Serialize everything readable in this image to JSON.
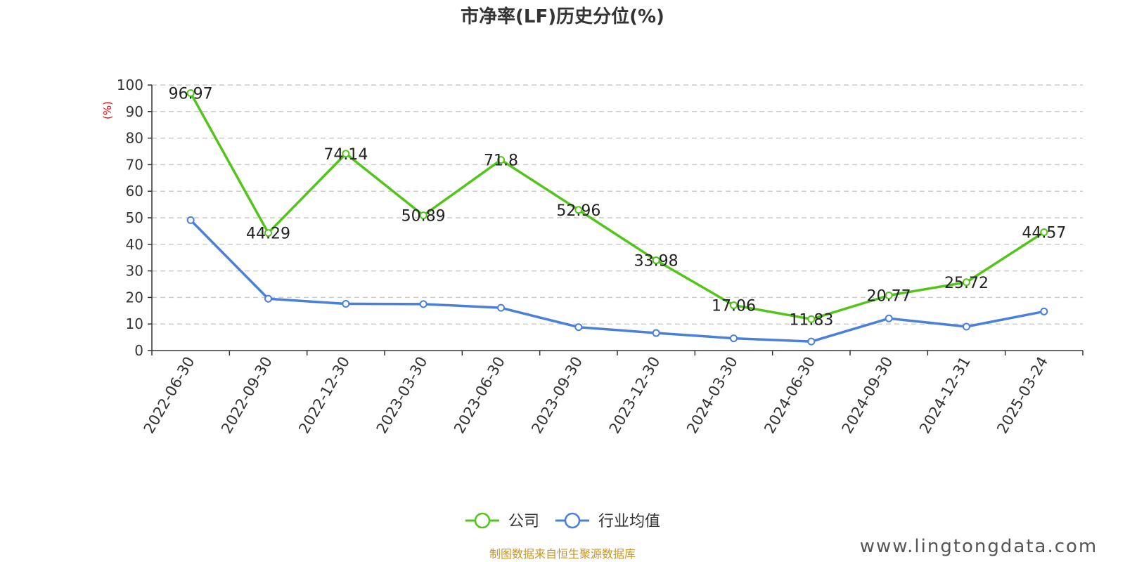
{
  "chart_data": {
    "type": "line",
    "title": "市净率(LF)历史分位(%)",
    "ylabel": "(%)",
    "ylim": [
      0,
      100
    ],
    "yticks": [
      0,
      10,
      20,
      30,
      40,
      50,
      60,
      70,
      80,
      90,
      100
    ],
    "categories": [
      "2022-06-30",
      "2022-09-30",
      "2022-12-30",
      "2023-03-30",
      "2023-06-30",
      "2023-09-30",
      "2023-12-30",
      "2024-03-30",
      "2024-06-30",
      "2024-09-30",
      "2024-12-31",
      "2025-03-24"
    ],
    "grid": true,
    "legend_position": "bottom",
    "series": [
      {
        "name": "公司",
        "color": "#52c41a",
        "values": [
          96.97,
          44.29,
          74.14,
          50.89,
          71.8,
          52.96,
          33.98,
          17.06,
          11.83,
          20.77,
          25.72,
          44.57
        ],
        "labels": [
          "96.97",
          "44.29",
          "74.14",
          "50.89",
          "71.8",
          "52.96",
          "33.98",
          "17.06",
          "11.83",
          "20.77",
          "25.72",
          "44.57"
        ]
      },
      {
        "name": "行业均值",
        "color": "#4a7fdc",
        "values": [
          49.1,
          19.5,
          17.6,
          17.5,
          16.1,
          8.8,
          6.6,
          4.6,
          3.4,
          12.1,
          9.0,
          14.7
        ]
      }
    ]
  },
  "footer": {
    "source": "制图数据来自恒生聚源数据库",
    "watermark": "www.lingtongdata.com"
  }
}
